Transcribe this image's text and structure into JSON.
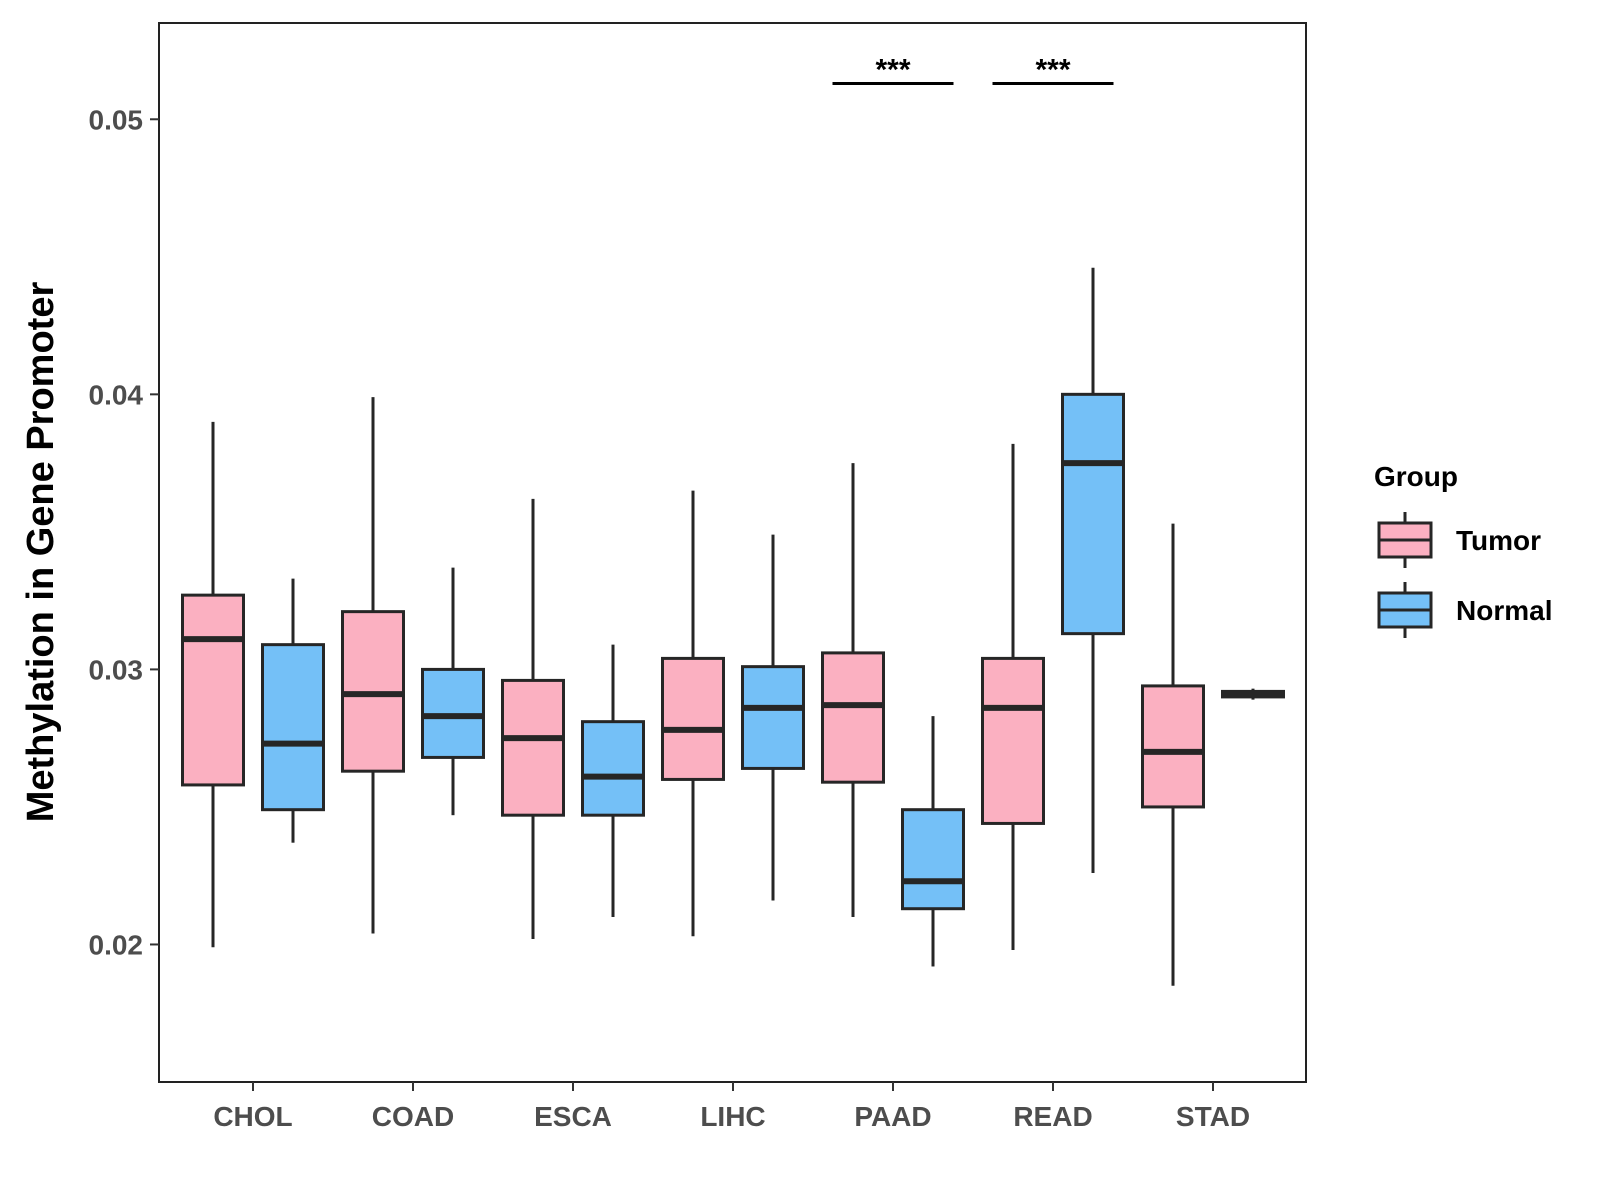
{
  "chart_data": {
    "type": "boxplot",
    "title": "",
    "xlabel": "",
    "ylabel": "Methylation in Gene Promoter",
    "ylim": [
      0.015,
      0.0535
    ],
    "y_ticks": [
      0.02,
      0.03,
      0.04,
      0.05
    ],
    "y_tick_labels": [
      "0.02",
      "0.03",
      "0.04",
      "0.05"
    ],
    "categories": [
      "CHOL",
      "COAD",
      "ESCA",
      "LIHC",
      "PAAD",
      "READ",
      "STAD"
    ],
    "legend": {
      "title": "Group",
      "position": "right",
      "entries": [
        {
          "name": "Tumor",
          "color": "#fbb0c1"
        },
        {
          "name": "Normal",
          "color": "#74c0f7"
        }
      ]
    },
    "series": [
      {
        "name": "Tumor",
        "color": "#fbb0c1",
        "boxes": [
          {
            "category": "CHOL",
            "whisker_low": 0.0199,
            "q1": 0.0258,
            "median": 0.0311,
            "q3": 0.0327,
            "whisker_high": 0.039
          },
          {
            "category": "COAD",
            "whisker_low": 0.0204,
            "q1": 0.0263,
            "median": 0.0291,
            "q3": 0.0321,
            "whisker_high": 0.0399
          },
          {
            "category": "ESCA",
            "whisker_low": 0.0202,
            "q1": 0.0247,
            "median": 0.0275,
            "q3": 0.0296,
            "whisker_high": 0.0362
          },
          {
            "category": "LIHC",
            "whisker_low": 0.0203,
            "q1": 0.026,
            "median": 0.0278,
            "q3": 0.0304,
            "whisker_high": 0.0365
          },
          {
            "category": "PAAD",
            "whisker_low": 0.021,
            "q1": 0.0259,
            "median": 0.0287,
            "q3": 0.0306,
            "whisker_high": 0.0375
          },
          {
            "category": "READ",
            "whisker_low": 0.0198,
            "q1": 0.0244,
            "median": 0.0286,
            "q3": 0.0304,
            "whisker_high": 0.0382
          },
          {
            "category": "STAD",
            "whisker_low": 0.0185,
            "q1": 0.025,
            "median": 0.027,
            "q3": 0.0294,
            "whisker_high": 0.0353
          }
        ]
      },
      {
        "name": "Normal",
        "color": "#74c0f7",
        "boxes": [
          {
            "category": "CHOL",
            "whisker_low": 0.0237,
            "q1": 0.0249,
            "median": 0.0273,
            "q3": 0.0309,
            "whisker_high": 0.0333
          },
          {
            "category": "COAD",
            "whisker_low": 0.0247,
            "q1": 0.0268,
            "median": 0.0283,
            "q3": 0.03,
            "whisker_high": 0.0337
          },
          {
            "category": "ESCA",
            "whisker_low": 0.021,
            "q1": 0.0247,
            "median": 0.0261,
            "q3": 0.0281,
            "whisker_high": 0.0309
          },
          {
            "category": "LIHC",
            "whisker_low": 0.0216,
            "q1": 0.0264,
            "median": 0.0286,
            "q3": 0.0301,
            "whisker_high": 0.0349
          },
          {
            "category": "PAAD",
            "whisker_low": 0.0192,
            "q1": 0.0213,
            "median": 0.0223,
            "q3": 0.0249,
            "whisker_high": 0.0283
          },
          {
            "category": "READ",
            "whisker_low": 0.0226,
            "q1": 0.0313,
            "median": 0.0375,
            "q3": 0.04,
            "whisker_high": 0.0446
          },
          {
            "category": "STAD",
            "whisker_low": 0.0289,
            "q1": 0.029,
            "median": 0.0291,
            "q3": 0.0292,
            "whisker_high": 0.0293
          }
        ]
      }
    ],
    "annotations": [
      {
        "category": "PAAD",
        "text": "***",
        "y": 0.0513
      },
      {
        "category": "READ",
        "text": "***",
        "y": 0.0513
      }
    ],
    "grid": false
  }
}
